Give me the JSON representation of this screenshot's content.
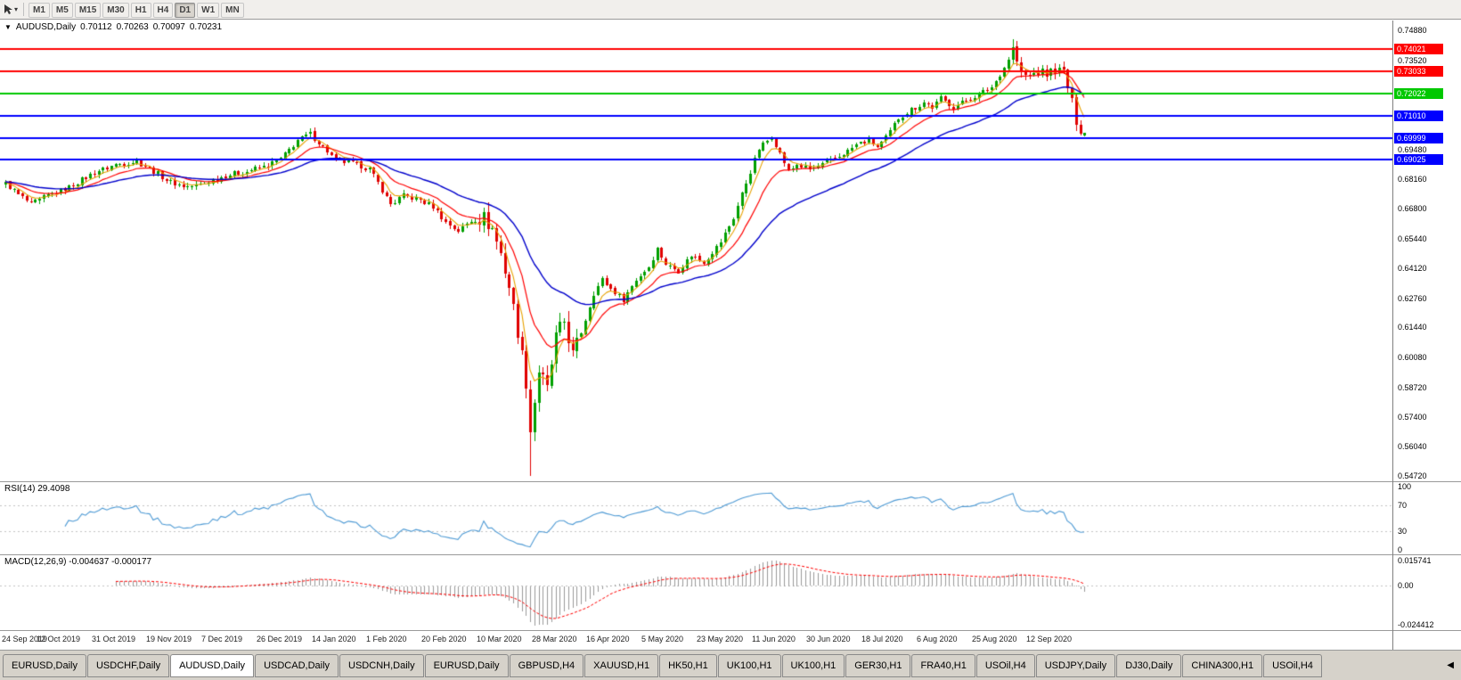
{
  "colors": {
    "up": "#00a000",
    "down": "#e00000",
    "ma_fast": "#e8a200",
    "ma_mid": "#ff0000",
    "ma_slow": "#0000cc",
    "rsi_line": "#4f9bd5",
    "macd_hist": "#9a9a9a",
    "macd_signal": "#ff0000",
    "toolbar_bg": "#f1efec",
    "tabbar_bg": "#d6d2ca",
    "panel_bg": "#ffffff"
  },
  "toolbar": {
    "timeframes": [
      "M1",
      "M5",
      "M15",
      "M30",
      "H1",
      "H4",
      "D1",
      "W1",
      "MN"
    ],
    "active": "D1"
  },
  "chart": {
    "collapse_icon": "▼",
    "symbol": "AUDUSD,Daily",
    "ohlc": {
      "open": "0.70112",
      "high": "0.70263",
      "low": "0.70097",
      "close": "0.70231"
    },
    "price_axis_labels": [
      "0.74880",
      "0.73520",
      "0.72160",
      "0.70800",
      "0.69480",
      "0.68160",
      "0.66800",
      "0.65440",
      "0.64120",
      "0.62760",
      "0.61440",
      "0.60080",
      "0.58720",
      "0.57400",
      "0.56040",
      "0.54720"
    ],
    "hlines": [
      {
        "price": 0.74021,
        "label": "0.74021",
        "color": "#ff0000"
      },
      {
        "price": 0.73033,
        "label": "0.73033",
        "color": "#ff0000"
      },
      {
        "price": 0.72022,
        "label": "0.72022",
        "color": "#00c800"
      },
      {
        "price": 0.7101,
        "label": "0.71010",
        "color": "#0000ff"
      },
      {
        "price": 0.69999,
        "label": "0.69999",
        "color": "#0000ff"
      },
      {
        "price": 0.69025,
        "label": "0.69025",
        "color": "#0000ff"
      }
    ]
  },
  "rsi": {
    "label": "RSI(14) 29.4098",
    "axis_labels": [
      {
        "text": "100",
        "value": 100
      },
      {
        "text": "70",
        "value": 70
      },
      {
        "text": "30",
        "value": 30
      },
      {
        "text": "0",
        "value": 0
      }
    ],
    "levels": [
      70,
      30
    ]
  },
  "macd": {
    "label": "MACD(12,26,9) -0.004637 -0.000177",
    "axis_labels": [
      {
        "text": "0.015741",
        "value": 0.015741
      },
      {
        "text": "0.00",
        "value": 0
      },
      {
        "text": "-0.024412",
        "value": -0.024412
      }
    ],
    "range_top": 0.015741,
    "range_bottom": -0.024412
  },
  "time_axis": [
    "24 Sep 2019",
    "12 Oct 2019",
    "31 Oct 2019",
    "19 Nov 2019",
    "7 Dec 2019",
    "26 Dec 2019",
    "14 Jan 2020",
    "1 Feb 2020",
    "20 Feb 2020",
    "10 Mar 2020",
    "28 Mar 2020",
    "16 Apr 2020",
    "5 May 2020",
    "23 May 2020",
    "11 Jun 2020",
    "30 Jun 2020",
    "18 Jul 2020",
    "6 Aug 2020",
    "25 Aug 2020",
    "12 Sep 2020"
  ],
  "tabs": {
    "items": [
      "EURUSD,Daily",
      "USDCHF,Daily",
      "AUDUSD,Daily",
      "USDCAD,Daily",
      "USDCNH,Daily",
      "EURUSD,Daily",
      "GBPUSD,H4",
      "XAUUSD,H1",
      "HK50,H1",
      "UK100,H1",
      "UK100,H1",
      "GER30,H1",
      "FRA40,H1",
      "USOil,H4",
      "USDJPY,Daily",
      "DJ30,Daily",
      "CHINA300,H1",
      "USOil,H4"
    ],
    "active_index": 2,
    "scroll_icon": "◀"
  },
  "chart_data": {
    "type": "candlestick",
    "symbol": "AUDUSD",
    "timeframe": "Daily",
    "bar_count": 256,
    "bars_per_time_label": 13,
    "price_top": 0.7488,
    "price_bottom": 0.5472,
    "last_candle": {
      "open": 0.70112,
      "high": 0.70263,
      "low": 0.70097,
      "close": 0.70231
    },
    "close_anchors": [
      [
        0,
        0.6795
      ],
      [
        3,
        0.6745
      ],
      [
        6,
        0.67
      ],
      [
        10,
        0.674
      ],
      [
        13,
        0.676
      ],
      [
        17,
        0.68
      ],
      [
        21,
        0.6845
      ],
      [
        26,
        0.688
      ],
      [
        31,
        0.6895
      ],
      [
        35,
        0.685
      ],
      [
        39,
        0.68
      ],
      [
        43,
        0.678
      ],
      [
        46,
        0.679
      ],
      [
        52,
        0.683
      ],
      [
        57,
        0.685
      ],
      [
        61,
        0.687
      ],
      [
        65,
        0.6905
      ],
      [
        69,
        0.699
      ],
      [
        72,
        0.702
      ],
      [
        75,
        0.696
      ],
      [
        78,
        0.69
      ],
      [
        82,
        0.6885
      ],
      [
        86,
        0.686
      ],
      [
        91,
        0.67
      ],
      [
        94,
        0.674
      ],
      [
        98,
        0.672
      ],
      [
        101,
        0.669
      ],
      [
        104,
        0.662
      ],
      [
        107,
        0.658
      ],
      [
        110,
        0.6625
      ],
      [
        113,
        0.664
      ],
      [
        115,
        0.659
      ],
      [
        117,
        0.648
      ],
      [
        119,
        0.633
      ],
      [
        121,
        0.613
      ],
      [
        123,
        0.59
      ],
      [
        124,
        0.568
      ],
      [
        125,
        0.581
      ],
      [
        126,
        0.595
      ],
      [
        128,
        0.586
      ],
      [
        130,
        0.61
      ],
      [
        132,
        0.617
      ],
      [
        134,
        0.602
      ],
      [
        136,
        0.612
      ],
      [
        139,
        0.63
      ],
      [
        141,
        0.636
      ],
      [
        143,
        0.632
      ],
      [
        146,
        0.627
      ],
      [
        149,
        0.636
      ],
      [
        152,
        0.642
      ],
      [
        154,
        0.65
      ],
      [
        156,
        0.643
      ],
      [
        159,
        0.64
      ],
      [
        162,
        0.647
      ],
      [
        165,
        0.644
      ],
      [
        169,
        0.653
      ],
      [
        172,
        0.664
      ],
      [
        175,
        0.68
      ],
      [
        178,
        0.695
      ],
      [
        181,
        0.701
      ],
      [
        183,
        0.693
      ],
      [
        185,
        0.685
      ],
      [
        187,
        0.688
      ],
      [
        190,
        0.686
      ],
      [
        193,
        0.688
      ],
      [
        195,
        0.69
      ],
      [
        198,
        0.693
      ],
      [
        201,
        0.697
      ],
      [
        204,
        0.699
      ],
      [
        206,
        0.696
      ],
      [
        208,
        0.7
      ],
      [
        211,
        0.709
      ],
      [
        214,
        0.713
      ],
      [
        217,
        0.716
      ],
      [
        219,
        0.714
      ],
      [
        221,
        0.718
      ],
      [
        224,
        0.714
      ],
      [
        227,
        0.717
      ],
      [
        230,
        0.72
      ],
      [
        233,
        0.723
      ],
      [
        236,
        0.732
      ],
      [
        238,
        0.7405
      ],
      [
        240,
        0.729
      ],
      [
        242,
        0.728
      ],
      [
        244,
        0.73
      ],
      [
        246,
        0.729
      ],
      [
        248,
        0.731
      ],
      [
        250,
        0.73
      ],
      [
        251,
        0.723
      ],
      [
        252,
        0.716
      ],
      [
        253,
        0.708
      ],
      [
        254,
        0.704
      ],
      [
        255,
        0.70231
      ]
    ],
    "special_lows": [
      [
        124,
        0.5472
      ]
    ],
    "special_highs": [
      [
        238,
        0.7448
      ]
    ],
    "noise": {
      "base": 0.0012,
      "crash_window": [
        112,
        135
      ],
      "crash": 0.0035,
      "tail_from": 236,
      "tail": 0.0022
    },
    "moving_averages": [
      {
        "type": "ema",
        "period": 5,
        "color": "#e8a200",
        "width": 1.1
      },
      {
        "type": "ema",
        "period": 13,
        "color": "#ff0000",
        "width": 1.2
      },
      {
        "type": "ema",
        "period": 34,
        "color": "#0000cc",
        "width": 1.4
      }
    ],
    "rsi": {
      "period": 14,
      "current": 29.4098
    },
    "macd": {
      "fast": 12,
      "slow": 26,
      "signal": 9,
      "values": [
        -0.004637,
        -0.000177
      ]
    }
  }
}
